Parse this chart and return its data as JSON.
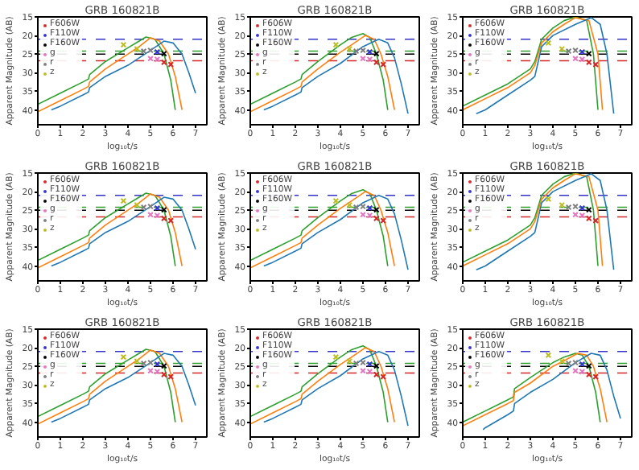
{
  "chart_data": [
    {
      "type": "line",
      "title": "GRB 160821B",
      "xlabel": "log₁₀t/s",
      "ylabel": "Apparent Magnitude (AB)",
      "xlim": [
        0,
        7.5
      ],
      "ylim": [
        44,
        15
      ],
      "xticks": [
        0,
        1,
        2,
        3,
        4,
        5,
        6,
        7
      ],
      "yticks": [
        15,
        20,
        25,
        30,
        35,
        40
      ],
      "legend": "top left",
      "ref_lines": [
        {
          "axis": "y",
          "value": 21,
          "color": "#3333cc",
          "line_style": "dashed"
        },
        {
          "axis": "y",
          "value": 24.2,
          "color": "#2ca02c",
          "line_style": "dashed"
        },
        {
          "axis": "y",
          "value": 25,
          "color": "#000000",
          "line_style": "dashed"
        },
        {
          "axis": "y",
          "value": 26.8,
          "color": "#d62728",
          "line_style": "dashed"
        }
      ],
      "series": [
        {
          "color": "#2ca02c",
          "x": [
            0,
            1,
            2,
            2.25,
            2.3,
            3,
            4,
            4.5,
            4.8,
            5.2,
            5.6,
            5.9,
            6.1
          ],
          "values": [
            38.5,
            35.5,
            32.5,
            31.7,
            30.5,
            27,
            23.3,
            21.5,
            20.4,
            21,
            25,
            32,
            40
          ]
        },
        {
          "color": "#ff7f0e",
          "x": [
            0,
            1,
            2,
            2.25,
            2.3,
            3,
            4,
            4.5,
            5.0,
            5.4,
            5.8,
            6.1,
            6.4
          ],
          "values": [
            40.5,
            37.5,
            34.5,
            33.7,
            32.5,
            29,
            25,
            23,
            20.6,
            21.5,
            25,
            31,
            40
          ]
        },
        {
          "color": "#1f77b4",
          "x": [
            0.6,
            1,
            2,
            2.25,
            2.3,
            3,
            4,
            5,
            5.6,
            6.0,
            6.4,
            6.7,
            7.0
          ],
          "values": [
            40,
            39,
            36,
            35.2,
            34,
            31,
            28,
            24,
            21.5,
            22,
            25,
            30,
            35.5
          ]
        },
        {
          "type": "scatter",
          "name": "F606W",
          "color": "#d62728",
          "marker": "cross",
          "x": [
            5.6,
            5.9
          ],
          "values": [
            27.2,
            27.8
          ]
        },
        {
          "type": "scatter",
          "name": "F110W",
          "color": "#3333cc",
          "marker": "cross",
          "x": [
            5.3
          ],
          "values": [
            24.4
          ]
        },
        {
          "type": "scatter",
          "name": "F160W",
          "color": "#000000",
          "marker": "cross",
          "x": [
            5.6
          ],
          "values": [
            24.9
          ]
        },
        {
          "type": "scatter",
          "name": "g",
          "color": "#e377c2",
          "marker": "cross",
          "x": [
            5.0,
            5.3
          ],
          "values": [
            26.2,
            26.4
          ]
        },
        {
          "type": "scatter",
          "name": "r",
          "color": "#7f7f7f",
          "marker": "cross",
          "x": [
            4.7,
            5.0
          ],
          "values": [
            24.2,
            24
          ]
        },
        {
          "type": "scatter",
          "name": "z",
          "color": "#bcbd22",
          "marker": "cross",
          "x": [
            3.8,
            4.4
          ],
          "values": [
            22.5,
            23.6
          ]
        }
      ]
    },
    {
      "type": "line",
      "title": "GRB 160821B",
      "xlabel": "log₁₀t/s",
      "ylabel": "Apparent Magnitude (AB)",
      "xlim": [
        0,
        7.5
      ],
      "ylim": [
        44,
        15
      ],
      "xticks": [
        0,
        1,
        2,
        3,
        4,
        5,
        6,
        7
      ],
      "yticks": [
        15,
        20,
        25,
        30,
        35,
        40
      ],
      "legend": "top left",
      "ref_lines": [
        {
          "axis": "y",
          "value": 21,
          "color": "#3333cc",
          "line_style": "dashed"
        },
        {
          "axis": "y",
          "value": 24.2,
          "color": "#2ca02c",
          "line_style": "dashed"
        },
        {
          "axis": "y",
          "value": 25,
          "color": "#000000",
          "line_style": "dashed"
        },
        {
          "axis": "y",
          "value": 26.8,
          "color": "#d62728",
          "line_style": "dashed"
        }
      ],
      "series": [
        {
          "color": "#2ca02c",
          "x": [
            0,
            1,
            2,
            2.25,
            2.3,
            3,
            4,
            4.5,
            5.0,
            5.3,
            5.6,
            5.9,
            6.1
          ],
          "values": [
            38.5,
            35.5,
            32.5,
            31.7,
            30.5,
            27,
            22.5,
            20.5,
            19.5,
            20.5,
            25,
            32,
            40
          ]
        },
        {
          "color": "#ff7f0e",
          "x": [
            0,
            1,
            2,
            2.25,
            2.3,
            3,
            4,
            4.5,
            5.1,
            5.5,
            5.8,
            6.1,
            6.4
          ],
          "values": [
            40.5,
            37.5,
            34.5,
            33.7,
            32.5,
            29,
            24.5,
            22.5,
            20,
            21,
            25,
            31,
            40
          ]
        },
        {
          "color": "#1f77b4",
          "x": [
            0.6,
            1,
            2,
            2.25,
            2.3,
            3,
            4,
            5,
            5.7,
            6.1,
            6.4,
            6.7,
            7.0
          ],
          "values": [
            40,
            39,
            36,
            35.2,
            34,
            31,
            27.5,
            23,
            21,
            22,
            26,
            33,
            41
          ]
        },
        {
          "type": "scatter",
          "name": "F606W",
          "color": "#d62728",
          "marker": "cross",
          "x": [
            5.6,
            5.9
          ],
          "values": [
            27.2,
            27.8
          ]
        },
        {
          "type": "scatter",
          "name": "F110W",
          "color": "#3333cc",
          "marker": "cross",
          "x": [
            5.3
          ],
          "values": [
            24.4
          ]
        },
        {
          "type": "scatter",
          "name": "F160W",
          "color": "#000000",
          "marker": "cross",
          "x": [
            5.6
          ],
          "values": [
            24.9
          ]
        },
        {
          "type": "scatter",
          "name": "g",
          "color": "#e377c2",
          "marker": "cross",
          "x": [
            5.0,
            5.3
          ],
          "values": [
            26.2,
            26.4
          ]
        },
        {
          "type": "scatter",
          "name": "r",
          "color": "#7f7f7f",
          "marker": "cross",
          "x": [
            4.7,
            5.0
          ],
          "values": [
            24.2,
            24
          ]
        },
        {
          "type": "scatter",
          "name": "z",
          "color": "#bcbd22",
          "marker": "cross",
          "x": [
            3.8,
            4.4
          ],
          "values": [
            22.5,
            23.6
          ]
        }
      ]
    },
    {
      "type": "line",
      "title": "GRB 160821B",
      "xlabel": "log₁₀t/s",
      "ylabel": "Apparent Magnitude (AB)",
      "xlim": [
        0,
        7.5
      ],
      "ylim": [
        44,
        15
      ],
      "xticks": [
        0,
        1,
        2,
        3,
        4,
        5,
        6,
        7
      ],
      "yticks": [
        15,
        20,
        25,
        30,
        35,
        40
      ],
      "legend": "top left",
      "ref_lines": [
        {
          "axis": "y",
          "value": 21,
          "color": "#3333cc",
          "line_style": "dashed"
        },
        {
          "axis": "y",
          "value": 24.2,
          "color": "#2ca02c",
          "line_style": "dashed"
        },
        {
          "axis": "y",
          "value": 25,
          "color": "#000000",
          "line_style": "dashed"
        },
        {
          "axis": "y",
          "value": 26.8,
          "color": "#d62728",
          "line_style": "dashed"
        }
      ],
      "series": [
        {
          "color": "#2ca02c",
          "x": [
            0,
            1,
            2,
            3,
            3.2,
            3.5,
            4,
            4.5,
            5,
            5.5,
            5.8,
            6.0
          ],
          "values": [
            39,
            36,
            33,
            29,
            27,
            21,
            18,
            16,
            15,
            16,
            25,
            40
          ]
        },
        {
          "color": "#ff7f0e",
          "x": [
            0,
            1,
            2,
            3,
            3.2,
            3.5,
            4,
            4.5,
            5,
            5.6,
            6.0,
            6.2
          ],
          "values": [
            40,
            37,
            34,
            30,
            28,
            22,
            19,
            17,
            15.2,
            16,
            25,
            40
          ]
        },
        {
          "color": "#1f77b4",
          "x": [
            0.6,
            1,
            2,
            3,
            3.2,
            3.5,
            4,
            5,
            5.7,
            6.1,
            6.4,
            6.7
          ],
          "values": [
            41,
            40,
            36,
            32,
            31,
            23,
            20,
            17,
            15.2,
            17,
            25,
            41
          ]
        },
        {
          "type": "scatter",
          "name": "F606W",
          "color": "#d62728",
          "marker": "cross",
          "x": [
            5.6,
            5.9
          ],
          "values": [
            27.2,
            27.8
          ]
        },
        {
          "type": "scatter",
          "name": "F110W",
          "color": "#3333cc",
          "marker": "cross",
          "x": [
            5.3
          ],
          "values": [
            24.4
          ]
        },
        {
          "type": "scatter",
          "name": "F160W",
          "color": "#000000",
          "marker": "cross",
          "x": [
            5.6
          ],
          "values": [
            24.9
          ]
        },
        {
          "type": "scatter",
          "name": "g",
          "color": "#e377c2",
          "marker": "cross",
          "x": [
            5.0,
            5.3
          ],
          "values": [
            26.2,
            26.4
          ]
        },
        {
          "type": "scatter",
          "name": "r",
          "color": "#7f7f7f",
          "marker": "cross",
          "x": [
            4.7,
            5.0
          ],
          "values": [
            24.2,
            24
          ]
        },
        {
          "type": "scatter",
          "name": "z",
          "color": "#bcbd22",
          "marker": "cross",
          "x": [
            3.8,
            4.4
          ],
          "values": [
            22,
            23.6
          ]
        }
      ]
    },
    {
      "type": "line",
      "title": "GRB 160821B",
      "xlabel": "log₁₀t/s",
      "ylabel": "Apparent Magnitude (AB)",
      "xlim": [
        0,
        7.5
      ],
      "ylim": [
        44,
        15
      ],
      "xticks": [
        0,
        1,
        2,
        3,
        4,
        5,
        6,
        7
      ],
      "yticks": [
        15,
        20,
        25,
        30,
        35,
        40
      ],
      "legend": "top left",
      "ref_lines": [
        {
          "axis": "y",
          "value": 21,
          "color": "#3333cc",
          "line_style": "dashed"
        },
        {
          "axis": "y",
          "value": 24.2,
          "color": "#2ca02c",
          "line_style": "dashed"
        },
        {
          "axis": "y",
          "value": 25,
          "color": "#000000",
          "line_style": "dashed"
        },
        {
          "axis": "y",
          "value": 26.8,
          "color": "#d62728",
          "line_style": "dashed"
        }
      ],
      "series": [
        {
          "color": "#2ca02c",
          "x": [
            0,
            1,
            2,
            2.25,
            2.3,
            3,
            4,
            4.5,
            4.8,
            5.2,
            5.6,
            5.9,
            6.1
          ],
          "values": [
            38.5,
            35.5,
            32.5,
            31.7,
            30.5,
            27,
            23.3,
            21.5,
            20.4,
            21,
            25,
            32,
            40
          ]
        },
        {
          "color": "#ff7f0e",
          "x": [
            0,
            1,
            2,
            2.25,
            2.3,
            3,
            4,
            4.5,
            5.0,
            5.4,
            5.8,
            6.1,
            6.4
          ],
          "values": [
            40.5,
            37.5,
            34.5,
            33.7,
            32.5,
            29,
            25,
            23,
            20.6,
            21.5,
            25,
            31,
            40
          ]
        },
        {
          "color": "#1f77b4",
          "x": [
            0.6,
            1,
            2,
            2.25,
            2.3,
            3,
            4,
            5,
            5.6,
            6.0,
            6.4,
            6.7,
            7.0
          ],
          "values": [
            40,
            39,
            36,
            35.2,
            34,
            31,
            28,
            24,
            21.5,
            22,
            25,
            30,
            35.5
          ]
        },
        {
          "type": "scatter",
          "name": "F606W",
          "color": "#d62728",
          "marker": "cross",
          "x": [
            5.6,
            5.9
          ],
          "values": [
            27.2,
            27.8
          ]
        },
        {
          "type": "scatter",
          "name": "F110W",
          "color": "#3333cc",
          "marker": "cross",
          "x": [
            5.3
          ],
          "values": [
            24.4
          ]
        },
        {
          "type": "scatter",
          "name": "F160W",
          "color": "#000000",
          "marker": "cross",
          "x": [
            5.6
          ],
          "values": [
            24.9
          ]
        },
        {
          "type": "scatter",
          "name": "g",
          "color": "#e377c2",
          "marker": "cross",
          "x": [
            5.0,
            5.3
          ],
          "values": [
            26.2,
            26.4
          ]
        },
        {
          "type": "scatter",
          "name": "r",
          "color": "#7f7f7f",
          "marker": "cross",
          "x": [
            4.7,
            5.0
          ],
          "values": [
            24.2,
            24
          ]
        },
        {
          "type": "scatter",
          "name": "z",
          "color": "#bcbd22",
          "marker": "cross",
          "x": [
            3.8,
            4.4
          ],
          "values": [
            22.5,
            23.6
          ]
        }
      ]
    },
    {
      "type": "line",
      "title": "GRB 160821B",
      "xlabel": "log₁₀t/s",
      "ylabel": "Apparent Magnitude (AB)",
      "xlim": [
        0,
        7.5
      ],
      "ylim": [
        44,
        15
      ],
      "xticks": [
        0,
        1,
        2,
        3,
        4,
        5,
        6,
        7
      ],
      "yticks": [
        15,
        20,
        25,
        30,
        35,
        40
      ],
      "legend": "top left",
      "ref_lines": [
        {
          "axis": "y",
          "value": 21,
          "color": "#3333cc",
          "line_style": "dashed"
        },
        {
          "axis": "y",
          "value": 24.2,
          "color": "#2ca02c",
          "line_style": "dashed"
        },
        {
          "axis": "y",
          "value": 25,
          "color": "#000000",
          "line_style": "dashed"
        },
        {
          "axis": "y",
          "value": 26.8,
          "color": "#d62728",
          "line_style": "dashed"
        }
      ],
      "series": [
        {
          "color": "#2ca02c",
          "x": [
            0,
            1,
            2,
            2.25,
            2.3,
            3,
            4,
            4.5,
            5.0,
            5.3,
            5.6,
            5.9,
            6.1
          ],
          "values": [
            38.5,
            35.5,
            32.5,
            31.7,
            30.5,
            27,
            22.5,
            20.5,
            19.5,
            20.5,
            25,
            32,
            40
          ]
        },
        {
          "color": "#ff7f0e",
          "x": [
            0,
            1,
            2,
            2.25,
            2.3,
            3,
            4,
            4.5,
            5.1,
            5.5,
            5.8,
            6.1,
            6.4
          ],
          "values": [
            40.5,
            37.5,
            34.5,
            33.7,
            32.5,
            29,
            24.5,
            22.5,
            20,
            21,
            25,
            31,
            40
          ]
        },
        {
          "color": "#1f77b4",
          "x": [
            0.6,
            1,
            2,
            2.25,
            2.3,
            3,
            4,
            5,
            5.7,
            6.1,
            6.4,
            6.7,
            7.0
          ],
          "values": [
            40,
            39,
            36,
            35.2,
            34,
            31,
            27.5,
            23,
            21,
            22,
            26,
            33,
            41
          ]
        },
        {
          "type": "scatter",
          "name": "F606W",
          "color": "#d62728",
          "marker": "cross",
          "x": [
            5.6,
            5.9
          ],
          "values": [
            27.2,
            27.8
          ]
        },
        {
          "type": "scatter",
          "name": "F110W",
          "color": "#3333cc",
          "marker": "cross",
          "x": [
            5.3
          ],
          "values": [
            24.4
          ]
        },
        {
          "type": "scatter",
          "name": "F160W",
          "color": "#000000",
          "marker": "cross",
          "x": [
            5.6
          ],
          "values": [
            24.9
          ]
        },
        {
          "type": "scatter",
          "name": "g",
          "color": "#e377c2",
          "marker": "cross",
          "x": [
            5.0,
            5.3
          ],
          "values": [
            26.2,
            26.4
          ]
        },
        {
          "type": "scatter",
          "name": "r",
          "color": "#7f7f7f",
          "marker": "cross",
          "x": [
            4.7,
            5.0
          ],
          "values": [
            24.2,
            24
          ]
        },
        {
          "type": "scatter",
          "name": "z",
          "color": "#bcbd22",
          "marker": "cross",
          "x": [
            3.8,
            4.4
          ],
          "values": [
            22.5,
            23.6
          ]
        }
      ]
    },
    {
      "type": "line",
      "title": "GRB 160821B",
      "xlabel": "log₁₀t/s",
      "ylabel": "Apparent Magnitude (AB)",
      "xlim": [
        0,
        7.5
      ],
      "ylim": [
        44,
        15
      ],
      "xticks": [
        0,
        1,
        2,
        3,
        4,
        5,
        6,
        7
      ],
      "yticks": [
        15,
        20,
        25,
        30,
        35,
        40
      ],
      "legend": "top left",
      "ref_lines": [
        {
          "axis": "y",
          "value": 21,
          "color": "#3333cc",
          "line_style": "dashed"
        },
        {
          "axis": "y",
          "value": 24.2,
          "color": "#2ca02c",
          "line_style": "dashed"
        },
        {
          "axis": "y",
          "value": 25,
          "color": "#000000",
          "line_style": "dashed"
        },
        {
          "axis": "y",
          "value": 26.8,
          "color": "#d62728",
          "line_style": "dashed"
        }
      ],
      "series": [
        {
          "color": "#2ca02c",
          "x": [
            0,
            1,
            2,
            3,
            3.2,
            3.5,
            4,
            4.5,
            5,
            5.5,
            5.8,
            6.0
          ],
          "values": [
            39,
            36,
            33,
            29,
            27,
            21,
            18,
            16,
            15,
            16,
            25,
            40
          ]
        },
        {
          "color": "#ff7f0e",
          "x": [
            0,
            1,
            2,
            3,
            3.2,
            3.5,
            4,
            4.5,
            5,
            5.6,
            6.0,
            6.2
          ],
          "values": [
            40,
            37,
            34,
            30,
            28,
            22,
            19,
            17,
            15.2,
            16,
            25,
            40
          ]
        },
        {
          "color": "#1f77b4",
          "x": [
            0.6,
            1,
            2,
            3,
            3.2,
            3.5,
            4,
            5,
            5.7,
            6.1,
            6.4,
            6.7
          ],
          "values": [
            41,
            40,
            36,
            32,
            31,
            23,
            20,
            17,
            15.2,
            17,
            25,
            41
          ]
        },
        {
          "type": "scatter",
          "name": "F606W",
          "color": "#d62728",
          "marker": "cross",
          "x": [
            5.6,
            5.9
          ],
          "values": [
            27.2,
            27.8
          ]
        },
        {
          "type": "scatter",
          "name": "F110W",
          "color": "#3333cc",
          "marker": "cross",
          "x": [
            5.3
          ],
          "values": [
            24.4
          ]
        },
        {
          "type": "scatter",
          "name": "F160W",
          "color": "#000000",
          "marker": "cross",
          "x": [
            5.6
          ],
          "values": [
            24.9
          ]
        },
        {
          "type": "scatter",
          "name": "g",
          "color": "#e377c2",
          "marker": "cross",
          "x": [
            5.0,
            5.3
          ],
          "values": [
            26.2,
            26.4
          ]
        },
        {
          "type": "scatter",
          "name": "r",
          "color": "#7f7f7f",
          "marker": "cross",
          "x": [
            4.7,
            5.0
          ],
          "values": [
            24.2,
            24
          ]
        },
        {
          "type": "scatter",
          "name": "z",
          "color": "#bcbd22",
          "marker": "cross",
          "x": [
            3.8,
            4.4
          ],
          "values": [
            22,
            23.6
          ]
        }
      ]
    },
    {
      "type": "line",
      "title": "GRB 160821B",
      "xlabel": "log₁₀t/s",
      "ylabel": "Apparent Magnitude (AB)",
      "xlim": [
        0,
        7.5
      ],
      "ylim": [
        44,
        15
      ],
      "xticks": [
        0,
        1,
        2,
        3,
        4,
        5,
        6,
        7
      ],
      "yticks": [
        15,
        20,
        25,
        30,
        35,
        40
      ],
      "legend": "top left",
      "ref_lines": [
        {
          "axis": "y",
          "value": 21,
          "color": "#3333cc",
          "line_style": "dashed"
        },
        {
          "axis": "y",
          "value": 24.2,
          "color": "#2ca02c",
          "line_style": "dashed"
        },
        {
          "axis": "y",
          "value": 25,
          "color": "#000000",
          "line_style": "dashed"
        },
        {
          "axis": "y",
          "value": 26.8,
          "color": "#d62728",
          "line_style": "dashed"
        }
      ],
      "series": [
        {
          "color": "#2ca02c",
          "x": [
            0,
            1,
            2,
            2.25,
            2.3,
            3,
            4,
            4.5,
            4.8,
            5.2,
            5.6,
            5.9,
            6.1
          ],
          "values": [
            38.5,
            35.5,
            32.5,
            31.7,
            30.5,
            27,
            23.3,
            21.5,
            20.4,
            21,
            25,
            32,
            40
          ]
        },
        {
          "color": "#ff7f0e",
          "x": [
            0,
            1,
            2,
            2.25,
            2.3,
            3,
            4,
            4.5,
            5.0,
            5.4,
            5.8,
            6.1,
            6.4
          ],
          "values": [
            40.5,
            37.5,
            34.5,
            33.7,
            32.5,
            29,
            25,
            23,
            20.6,
            21.5,
            25,
            31,
            40
          ]
        },
        {
          "color": "#1f77b4",
          "x": [
            0.6,
            1,
            2,
            2.25,
            2.3,
            3,
            4,
            5,
            5.6,
            6.0,
            6.4,
            6.7,
            7.0
          ],
          "values": [
            40,
            39,
            36,
            35.2,
            34,
            31,
            28,
            24,
            21.5,
            22,
            25,
            30,
            35.5
          ]
        },
        {
          "type": "scatter",
          "name": "F606W",
          "color": "#d62728",
          "marker": "cross",
          "x": [
            5.6,
            5.9
          ],
          "values": [
            27.2,
            27.8
          ]
        },
        {
          "type": "scatter",
          "name": "F110W",
          "color": "#3333cc",
          "marker": "cross",
          "x": [
            5.3
          ],
          "values": [
            24.4
          ]
        },
        {
          "type": "scatter",
          "name": "F160W",
          "color": "#000000",
          "marker": "cross",
          "x": [
            5.6
          ],
          "values": [
            24.9
          ]
        },
        {
          "type": "scatter",
          "name": "g",
          "color": "#e377c2",
          "marker": "cross",
          "x": [
            5.0,
            5.3
          ],
          "values": [
            26.2,
            26.4
          ]
        },
        {
          "type": "scatter",
          "name": "r",
          "color": "#7f7f7f",
          "marker": "cross",
          "x": [
            4.7,
            5.0
          ],
          "values": [
            24.2,
            24
          ]
        },
        {
          "type": "scatter",
          "name": "z",
          "color": "#bcbd22",
          "marker": "cross",
          "x": [
            3.8,
            4.4
          ],
          "values": [
            22.5,
            23.6
          ]
        }
      ]
    },
    {
      "type": "line",
      "title": "GRB 160821B",
      "xlabel": "log₁₀t/s",
      "ylabel": "Apparent Magnitude (AB)",
      "xlim": [
        0,
        7.5
      ],
      "ylim": [
        44,
        15
      ],
      "xticks": [
        0,
        1,
        2,
        3,
        4,
        5,
        6,
        7
      ],
      "yticks": [
        15,
        20,
        25,
        30,
        35,
        40
      ],
      "legend": "top left",
      "ref_lines": [
        {
          "axis": "y",
          "value": 21,
          "color": "#3333cc",
          "line_style": "dashed"
        },
        {
          "axis": "y",
          "value": 24.2,
          "color": "#2ca02c",
          "line_style": "dashed"
        },
        {
          "axis": "y",
          "value": 25,
          "color": "#000000",
          "line_style": "dashed"
        },
        {
          "axis": "y",
          "value": 26.8,
          "color": "#d62728",
          "line_style": "dashed"
        }
      ],
      "series": [
        {
          "color": "#2ca02c",
          "x": [
            0,
            1,
            2,
            2.25,
            2.3,
            3,
            4,
            4.5,
            5.0,
            5.3,
            5.6,
            5.9,
            6.1
          ],
          "values": [
            38.5,
            35.5,
            32.5,
            31.7,
            30.5,
            27,
            22.5,
            20.5,
            19.5,
            20.5,
            25,
            32,
            40
          ]
        },
        {
          "color": "#ff7f0e",
          "x": [
            0,
            1,
            2,
            2.25,
            2.3,
            3,
            4,
            4.5,
            5.1,
            5.5,
            5.8,
            6.1,
            6.4
          ],
          "values": [
            40.5,
            37.5,
            34.5,
            33.7,
            32.5,
            29,
            24.5,
            22.5,
            20,
            21,
            25,
            31,
            40
          ]
        },
        {
          "color": "#1f77b4",
          "x": [
            0.6,
            1,
            2,
            2.25,
            2.3,
            3,
            4,
            5,
            5.7,
            6.1,
            6.4,
            6.7,
            7.0
          ],
          "values": [
            40,
            39,
            36,
            35.2,
            34,
            31,
            27.5,
            23,
            21,
            22,
            26,
            33,
            41
          ]
        },
        {
          "type": "scatter",
          "name": "F606W",
          "color": "#d62728",
          "marker": "cross",
          "x": [
            5.6,
            5.9
          ],
          "values": [
            27.2,
            27.8
          ]
        },
        {
          "type": "scatter",
          "name": "F110W",
          "color": "#3333cc",
          "marker": "cross",
          "x": [
            5.3
          ],
          "values": [
            24.4
          ]
        },
        {
          "type": "scatter",
          "name": "F160W",
          "color": "#000000",
          "marker": "cross",
          "x": [
            5.6
          ],
          "values": [
            24.9
          ]
        },
        {
          "type": "scatter",
          "name": "g",
          "color": "#e377c2",
          "marker": "cross",
          "x": [
            5.0,
            5.3
          ],
          "values": [
            26.2,
            26.4
          ]
        },
        {
          "type": "scatter",
          "name": "r",
          "color": "#7f7f7f",
          "marker": "cross",
          "x": [
            4.7,
            5.0
          ],
          "values": [
            24.2,
            24
          ]
        },
        {
          "type": "scatter",
          "name": "z",
          "color": "#bcbd22",
          "marker": "cross",
          "x": [
            3.8,
            4.4
          ],
          "values": [
            22.5,
            23.6
          ]
        }
      ]
    },
    {
      "type": "line",
      "title": "GRB 160821B",
      "xlabel": "log₁₀t/s",
      "ylabel": "Apparent Magnitude (AB)",
      "xlim": [
        0,
        7.5
      ],
      "ylim": [
        44,
        15
      ],
      "xticks": [
        0,
        1,
        2,
        3,
        4,
        5,
        6,
        7
      ],
      "yticks": [
        15,
        20,
        25,
        30,
        35,
        40
      ],
      "legend": "top left",
      "ref_lines": [
        {
          "axis": "y",
          "value": 21,
          "color": "#3333cc",
          "line_style": "dashed"
        },
        {
          "axis": "y",
          "value": 24.2,
          "color": "#2ca02c",
          "line_style": "dashed"
        },
        {
          "axis": "y",
          "value": 25,
          "color": "#000000",
          "line_style": "dashed"
        },
        {
          "axis": "y",
          "value": 26.8,
          "color": "#d62728",
          "line_style": "dashed"
        }
      ],
      "series": [
        {
          "color": "#2ca02c",
          "x": [
            0,
            1,
            2,
            2.25,
            2.3,
            3,
            4,
            4.5,
            5.0,
            5.3,
            5.6,
            5.9,
            6.1
          ],
          "values": [
            40,
            37,
            34,
            33.2,
            31,
            28,
            24,
            22.5,
            21.5,
            22,
            25,
            32,
            40
          ]
        },
        {
          "color": "#ff7f0e",
          "x": [
            0,
            1,
            2,
            2.25,
            2.3,
            3,
            4,
            4.5,
            5.1,
            5.5,
            5.8,
            6.1,
            6.4
          ],
          "values": [
            41,
            38,
            35,
            34.2,
            32,
            29.5,
            25,
            23.5,
            21.5,
            22,
            25,
            31,
            40
          ]
        },
        {
          "color": "#1f77b4",
          "x": [
            0.9,
            1,
            2,
            2.25,
            2.3,
            3,
            4,
            5,
            5.7,
            6.1,
            6.4,
            6.7,
            7.0
          ],
          "values": [
            42,
            41.5,
            38,
            37,
            35,
            32,
            28.5,
            24,
            21.5,
            22,
            26,
            33,
            39
          ]
        },
        {
          "type": "scatter",
          "name": "F606W",
          "color": "#d62728",
          "marker": "cross",
          "x": [
            5.6,
            5.9
          ],
          "values": [
            27.2,
            27.8
          ]
        },
        {
          "type": "scatter",
          "name": "F110W",
          "color": "#3333cc",
          "marker": "cross",
          "x": [
            5.3
          ],
          "values": [
            24.4
          ]
        },
        {
          "type": "scatter",
          "name": "F160W",
          "color": "#000000",
          "marker": "cross",
          "x": [
            5.6
          ],
          "values": [
            24.9
          ]
        },
        {
          "type": "scatter",
          "name": "g",
          "color": "#e377c2",
          "marker": "cross",
          "x": [
            5.0,
            5.3
          ],
          "values": [
            26.2,
            26.4
          ]
        },
        {
          "type": "scatter",
          "name": "r",
          "color": "#7f7f7f",
          "marker": "cross",
          "x": [
            4.7,
            5.0
          ],
          "values": [
            24.2,
            24
          ]
        },
        {
          "type": "scatter",
          "name": "z",
          "color": "#bcbd22",
          "marker": "cross",
          "x": [
            3.8,
            4.4
          ],
          "values": [
            22,
            23.6
          ]
        }
      ]
    }
  ]
}
